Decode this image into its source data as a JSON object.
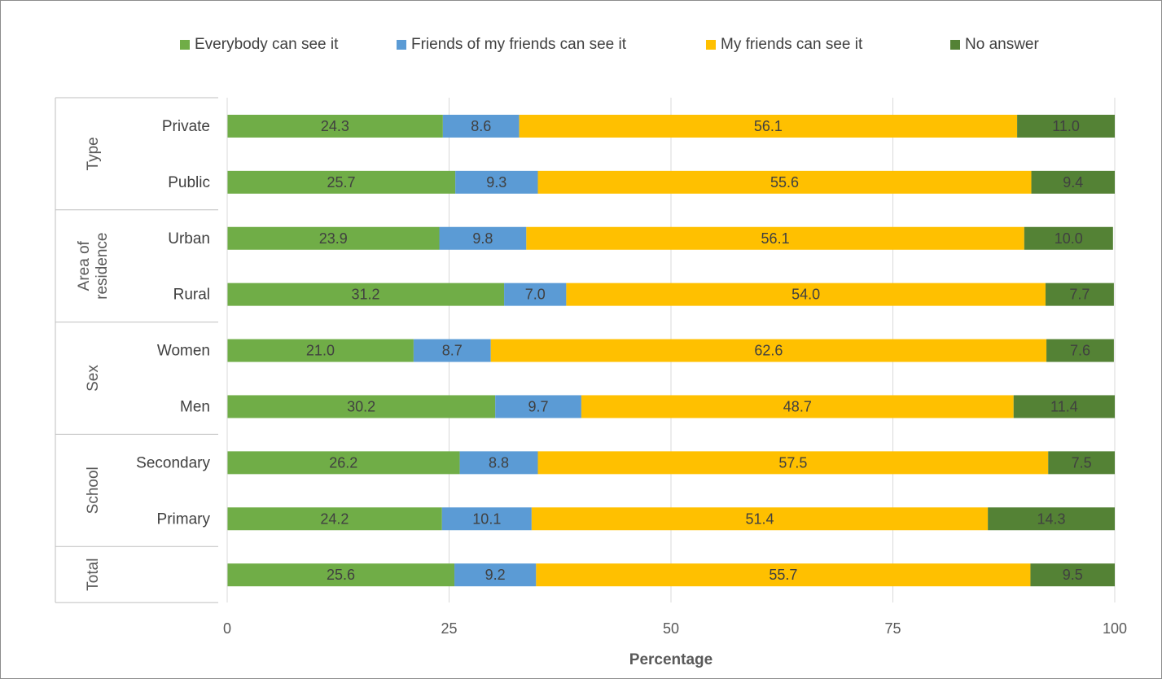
{
  "chart_data": {
    "type": "bar",
    "orientation": "horizontal",
    "stacked": true,
    "xlabel": "Percentage",
    "xlim": [
      0,
      100
    ],
    "xticks": [
      "0",
      "25",
      "50",
      "75",
      "100"
    ],
    "grid": true,
    "legend_position": "top",
    "groups": [
      {
        "label": "Type",
        "categories": [
          "Private",
          "Public"
        ]
      },
      {
        "label": "Area of residence",
        "label_lines": [
          "Area of",
          "residence"
        ],
        "categories": [
          "Urban",
          "Rural"
        ]
      },
      {
        "label": "Sex",
        "categories": [
          "Women",
          "Men"
        ]
      },
      {
        "label": "School",
        "categories": [
          "Secondary",
          "Primary"
        ]
      },
      {
        "label": "Total",
        "categories": [
          ""
        ]
      }
    ],
    "series": [
      {
        "name": "Everybody can see it",
        "color": "#70ad47",
        "values": [
          24.3,
          25.7,
          23.9,
          31.2,
          21.0,
          30.2,
          26.2,
          24.2,
          25.6
        ]
      },
      {
        "name": "Friends of my friends can see it",
        "color": "#5b9bd5",
        "values": [
          8.6,
          9.3,
          9.8,
          7.0,
          8.7,
          9.7,
          8.8,
          10.1,
          9.2
        ]
      },
      {
        "name": "My friends can see it",
        "color": "#ffc000",
        "values": [
          56.1,
          55.6,
          56.1,
          54.0,
          62.6,
          48.7,
          57.5,
          51.4,
          55.7
        ]
      },
      {
        "name": "No answer",
        "color": "#548235",
        "values": [
          11.0,
          9.4,
          10.0,
          7.7,
          7.6,
          11.4,
          7.5,
          14.3,
          9.5
        ]
      }
    ]
  }
}
